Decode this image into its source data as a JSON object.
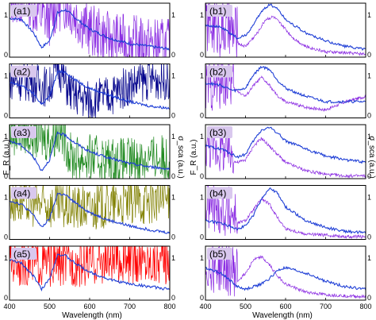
{
  "chart_data": {
    "type": "line",
    "shared_x": {
      "label": "Wavelength (nm)",
      "range": [
        400,
        800
      ],
      "ticks": [
        400,
        500,
        600,
        700,
        800
      ]
    },
    "y_left_label": "F_R (a.u.)",
    "y_right_label": "σ_sca (a.u.)",
    "colors": {
      "blue": "#1f3fd6",
      "violet": "#8a2be2",
      "navy": "#00008b",
      "green": "#228b22",
      "olive": "#808000",
      "red": "#ff0000",
      "purple": "#8b2fc9",
      "label_bg": "#d9c8ee"
    },
    "panels": [
      {
        "label": "(a1)",
        "column": "a",
        "row": 0,
        "left_ticks": [
          "0",
          "1"
        ],
        "right_ticks": [
          "0",
          "1"
        ],
        "noise_color": "violet",
        "noise_x": [
          400,
          800
        ],
        "noise_level": 0.45,
        "noisy_series": {
          "x": [
            400,
            450,
            480,
            500,
            520,
            540,
            560,
            600,
            650,
            700,
            750,
            800
          ],
          "y": [
            0.95,
            0.9,
            0.6,
            0.55,
            0.8,
            0.85,
            0.65,
            0.35,
            0.2,
            0.15,
            0.1,
            0.08
          ]
        },
        "spectrum": {
          "x": [
            400,
            430,
            460,
            480,
            500,
            520,
            540,
            560,
            600,
            650,
            700,
            750,
            800
          ],
          "y": [
            0.72,
            0.7,
            0.45,
            0.18,
            0.3,
            0.82,
            0.88,
            0.75,
            0.52,
            0.35,
            0.25,
            0.2,
            0.15
          ]
        }
      },
      {
        "label": "(a2)",
        "column": "a",
        "row": 1,
        "left_ticks": [
          "0",
          "1"
        ],
        "right_ticks": [
          "0",
          "1"
        ],
        "noise_color": "navy",
        "noise_x": [
          400,
          800
        ],
        "noise_level": 0.35,
        "noisy_series": {
          "x": [
            400,
            460,
            500,
            520,
            540,
            560,
            600,
            650,
            700,
            750,
            800
          ],
          "y": [
            0.6,
            0.55,
            0.45,
            0.9,
            0.5,
            0.3,
            0.2,
            0.3,
            0.5,
            0.6,
            0.6
          ]
        },
        "spectrum": {
          "x": [
            400,
            430,
            460,
            480,
            500,
            520,
            540,
            560,
            600,
            650,
            700,
            750,
            800
          ],
          "y": [
            0.65,
            0.6,
            0.45,
            0.25,
            0.4,
            0.85,
            0.85,
            0.72,
            0.55,
            0.42,
            0.3,
            0.22,
            0.18
          ]
        }
      },
      {
        "label": "(a3)",
        "column": "a",
        "row": 2,
        "left_ticks": [
          "0",
          "1"
        ],
        "right_ticks": [
          "0",
          "1"
        ],
        "noise_color": "green",
        "noise_x": [
          400,
          800
        ],
        "noise_level": 0.4,
        "noisy_series": {
          "x": [
            400,
            450,
            500,
            520,
            540,
            550,
            560,
            600,
            650,
            700,
            750,
            800
          ],
          "y": [
            0.75,
            0.7,
            0.6,
            0.75,
            0.6,
            0.3,
            0.25,
            0.25,
            0.2,
            0.2,
            0.25,
            0.25
          ]
        },
        "spectrum": {
          "x": [
            400,
            430,
            460,
            480,
            500,
            520,
            540,
            560,
            600,
            650,
            700,
            750,
            800
          ],
          "y": [
            0.7,
            0.62,
            0.4,
            0.15,
            0.35,
            0.85,
            0.8,
            0.68,
            0.5,
            0.38,
            0.28,
            0.22,
            0.18
          ]
        }
      },
      {
        "label": "(a4)",
        "column": "a",
        "row": 3,
        "left_ticks": [
          "0",
          "1"
        ],
        "right_ticks": [
          "0",
          "1"
        ],
        "noise_color": "olive",
        "noise_x": [
          400,
          800
        ],
        "noise_level": 0.4,
        "noisy_series": {
          "x": [
            400,
            450,
            500,
            550,
            600,
            650,
            700,
            750,
            800
          ],
          "y": [
            0.6,
            0.55,
            0.5,
            0.45,
            0.45,
            0.5,
            0.55,
            0.6,
            0.6
          ]
        },
        "spectrum": {
          "x": [
            400,
            430,
            460,
            480,
            500,
            520,
            540,
            560,
            600,
            650,
            700,
            750,
            800
          ],
          "y": [
            0.72,
            0.65,
            0.45,
            0.22,
            0.38,
            0.85,
            0.82,
            0.7,
            0.5,
            0.35,
            0.25,
            0.18,
            0.12
          ]
        }
      },
      {
        "label": "(a5)",
        "column": "a",
        "row": 4,
        "left_ticks": [
          "0",
          "1"
        ],
        "right_ticks": [
          "0",
          "1"
        ],
        "noise_color": "red",
        "noise_x": [
          400,
          800
        ],
        "noise_level": 0.4,
        "noisy_series": {
          "x": [
            400,
            450,
            500,
            550,
            600,
            650,
            700,
            750,
            800
          ],
          "y": [
            0.6,
            0.55,
            0.55,
            0.55,
            0.55,
            0.6,
            0.6,
            0.6,
            0.6
          ]
        },
        "spectrum": {
          "x": [
            400,
            430,
            460,
            480,
            500,
            520,
            540,
            560,
            600,
            650,
            700,
            750,
            800
          ],
          "y": [
            0.75,
            0.68,
            0.45,
            0.2,
            0.4,
            0.85,
            0.82,
            0.7,
            0.52,
            0.38,
            0.3,
            0.25,
            0.2
          ]
        }
      },
      {
        "label": "(b1)",
        "column": "b",
        "row": 0,
        "left_ticks": [
          "0",
          "1"
        ],
        "right_ticks": [
          "0",
          "1"
        ],
        "noise_color": "violet",
        "noise_x": [
          400,
          480
        ],
        "noise_level": 0.5,
        "noisy_series": {
          "x": [
            400,
            450,
            500,
            530,
            550,
            570,
            590,
            620,
            650,
            700,
            750,
            800
          ],
          "y": [
            0.45,
            0.35,
            0.2,
            0.45,
            0.7,
            0.75,
            0.6,
            0.35,
            0.2,
            0.1,
            0.08,
            0.06
          ]
        },
        "spectrum": {
          "x": [
            400,
            440,
            480,
            500,
            520,
            540,
            560,
            580,
            600,
            650,
            700,
            750,
            800
          ],
          "y": [
            0.6,
            0.55,
            0.35,
            0.4,
            0.6,
            0.85,
            0.98,
            0.9,
            0.7,
            0.45,
            0.3,
            0.2,
            0.15
          ]
        }
      },
      {
        "label": "(b2)",
        "column": "b",
        "row": 1,
        "left_ticks": [
          "0",
          "1"
        ],
        "right_ticks": [
          "0",
          "1"
        ],
        "noise_color": "violet",
        "noise_x": [
          400,
          470
        ],
        "noise_level": 0.45,
        "noisy_series": {
          "x": [
            400,
            440,
            470,
            500,
            520,
            540,
            560,
            580,
            600,
            650,
            700,
            750,
            800
          ],
          "y": [
            0.45,
            0.5,
            0.55,
            0.4,
            0.6,
            0.75,
            0.6,
            0.4,
            0.3,
            0.2,
            0.15,
            0.3,
            0.4
          ]
        },
        "spectrum": {
          "x": [
            400,
            440,
            470,
            500,
            520,
            540,
            560,
            580,
            600,
            650,
            700,
            750,
            800
          ],
          "y": [
            0.65,
            0.6,
            0.5,
            0.55,
            0.8,
            0.95,
            0.9,
            0.7,
            0.55,
            0.4,
            0.3,
            0.3,
            0.3
          ]
        }
      },
      {
        "label": "(b3)",
        "column": "b",
        "row": 2,
        "left_ticks": [
          "0",
          "1"
        ],
        "right_ticks": [
          "0",
          "1"
        ],
        "noise_color": "violet",
        "noise_x": [
          400,
          470
        ],
        "noise_level": 0.4,
        "noisy_series": {
          "x": [
            400,
            440,
            480,
            500,
            520,
            540,
            560,
            600,
            650,
            700,
            750,
            800
          ],
          "y": [
            0.5,
            0.4,
            0.3,
            0.35,
            0.6,
            0.75,
            0.6,
            0.3,
            0.15,
            0.08,
            0.05,
            0.05
          ]
        },
        "spectrum": {
          "x": [
            400,
            440,
            480,
            500,
            520,
            540,
            560,
            580,
            600,
            650,
            700,
            750,
            800
          ],
          "y": [
            0.6,
            0.55,
            0.4,
            0.45,
            0.7,
            0.9,
            0.95,
            0.85,
            0.7,
            0.55,
            0.42,
            0.35,
            0.3
          ]
        }
      },
      {
        "label": "(b4)",
        "column": "b",
        "row": 3,
        "left_ticks": [
          "0",
          "1"
        ],
        "right_ticks": [
          "0",
          "1"
        ],
        "noise_color": "violet",
        "noise_x": [
          400,
          480
        ],
        "noise_level": 0.45,
        "noisy_series": {
          "x": [
            400,
            440,
            480,
            500,
            520,
            540,
            560,
            580,
            600,
            650,
            700,
            750,
            800
          ],
          "y": [
            0.5,
            0.4,
            0.3,
            0.35,
            0.55,
            0.75,
            0.65,
            0.4,
            0.2,
            0.1,
            0.08,
            0.05,
            0.05
          ]
        },
        "spectrum": {
          "x": [
            400,
            440,
            480,
            500,
            520,
            540,
            560,
            580,
            600,
            650,
            700,
            750,
            800
          ],
          "y": [
            0.35,
            0.3,
            0.2,
            0.25,
            0.45,
            0.75,
            0.95,
            0.85,
            0.6,
            0.35,
            0.22,
            0.15,
            0.12
          ]
        }
      },
      {
        "label": "(b5)",
        "column": "b",
        "row": 4,
        "left_ticks": [
          "0",
          "1"
        ],
        "right_ticks": [
          "0",
          "1"
        ],
        "noise_color": "violet",
        "noise_x": [
          400,
          480
        ],
        "noise_level": 0.45,
        "noisy_series": {
          "x": [
            400,
            440,
            480,
            500,
            520,
            540,
            560,
            580,
            600,
            650,
            700,
            750,
            800
          ],
          "y": [
            0.5,
            0.45,
            0.35,
            0.5,
            0.75,
            0.8,
            0.65,
            0.45,
            0.3,
            0.15,
            0.1,
            0.08,
            0.06
          ]
        },
        "spectrum": {
          "x": [
            400,
            440,
            480,
            500,
            520,
            540,
            560,
            580,
            600,
            650,
            700,
            750,
            800
          ],
          "y": [
            0.6,
            0.5,
            0.25,
            0.2,
            0.25,
            0.3,
            0.4,
            0.55,
            0.6,
            0.5,
            0.35,
            0.25,
            0.2
          ]
        }
      }
    ]
  }
}
